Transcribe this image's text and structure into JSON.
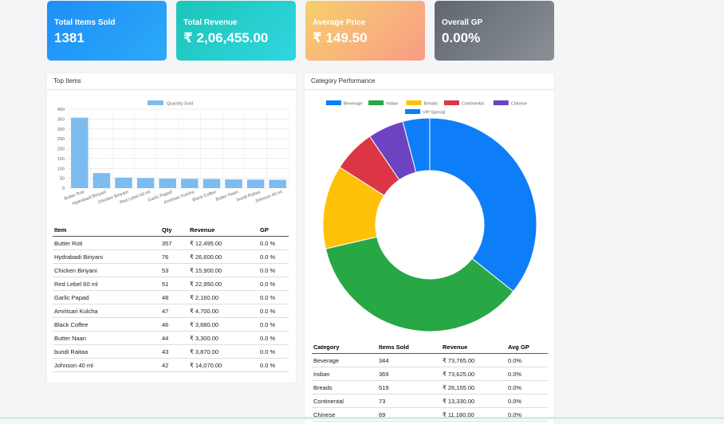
{
  "kpis": [
    {
      "label": "Total Items Sold",
      "value": "1381"
    },
    {
      "label": "Total Revenue",
      "value": "₹ 2,06,455.00"
    },
    {
      "label": "Average Price",
      "value": "₹ 149.50"
    },
    {
      "label": "Overall GP",
      "value": "0.00%"
    }
  ],
  "top_items": {
    "title": "Top Items",
    "headers": {
      "item": "Item",
      "qty": "Qty",
      "revenue": "Revenue",
      "gp": "GP"
    },
    "rows": [
      {
        "item": "Butter Roti",
        "qty": "357",
        "revenue": "₹ 12,495.00",
        "gp": "0.0 %"
      },
      {
        "item": "Hydrabadi Biriyani",
        "qty": "76",
        "revenue": "₹ 26,600.00",
        "gp": "0.0 %"
      },
      {
        "item": "Chicken Biriyani",
        "qty": "53",
        "revenue": "₹ 15,900.00",
        "gp": "0.0 %"
      },
      {
        "item": "Red Lebel 60 ml",
        "qty": "51",
        "revenue": "₹ 22,950.00",
        "gp": "0.0 %"
      },
      {
        "item": "Garlic Papad",
        "qty": "48",
        "revenue": "₹ 2,160.00",
        "gp": "0.0 %"
      },
      {
        "item": "Amritsari Kulcha",
        "qty": "47",
        "revenue": "₹ 4,700.00",
        "gp": "0.0 %"
      },
      {
        "item": "Black Coffee",
        "qty": "46",
        "revenue": "₹ 3,680.00",
        "gp": "0.0 %"
      },
      {
        "item": "Butter Naan",
        "qty": "44",
        "revenue": "₹ 3,300.00",
        "gp": "0.0 %"
      },
      {
        "item": "bundi Raitaa",
        "qty": "43",
        "revenue": "₹ 3,870.00",
        "gp": "0.0 %"
      },
      {
        "item": "Johnson 40 ml",
        "qty": "42",
        "revenue": "₹ 14,070.00",
        "gp": "0.0 %"
      }
    ]
  },
  "category_performance": {
    "title": "Category Performance",
    "headers": {
      "category": "Category",
      "items_sold": "Items Sold",
      "revenue": "Revenue",
      "avg_gp": "Avg GP"
    },
    "rows": [
      {
        "category": "Beverage",
        "items_sold": "344",
        "revenue": "₹ 73,765.00",
        "avg_gp": "0.0%"
      },
      {
        "category": "Indian",
        "items_sold": "369",
        "revenue": "₹ 73,625.00",
        "avg_gp": "0.0%"
      },
      {
        "category": "Breads",
        "items_sold": "519",
        "revenue": "₹ 26,155.00",
        "avg_gp": "0.0%"
      },
      {
        "category": "Continental",
        "items_sold": "73",
        "revenue": "₹ 13,330.00",
        "avg_gp": "0.0%"
      },
      {
        "category": "Chinese",
        "items_sold": "69",
        "revenue": "₹ 11,180.00",
        "avg_gp": "0.0%"
      }
    ]
  },
  "chart_data": [
    {
      "type": "bar",
      "categories": [
        "Butter Roti",
        "Hydrabadi Biriyani",
        "Chicken Biriyani",
        "Red Lebel 60 ml",
        "Garlic Papad",
        "Amritsari Kulcha",
        "Black Coffee",
        "Butter Naan",
        "bundi Raitaa",
        "Johnson 40 ml"
      ],
      "series": [
        {
          "name": "Quantity Sold",
          "values": [
            357,
            76,
            53,
            51,
            48,
            47,
            46,
            44,
            43,
            42
          ],
          "color": "#7cbcf0"
        }
      ],
      "ylim": [
        0,
        400
      ],
      "yticks": [
        0,
        50,
        100,
        150,
        200,
        250,
        300,
        350,
        400
      ],
      "legend": "top",
      "grid": true
    },
    {
      "type": "pie",
      "labels": [
        "Beverage",
        "Indian",
        "Breads",
        "Continental",
        "Chinese",
        "VIP Special"
      ],
      "values": [
        73765,
        73625,
        26155,
        13330,
        11180,
        8400
      ],
      "colors": [
        "#0d7ef8",
        "#28a745",
        "#ffc107",
        "#dc3545",
        "#6f42c1",
        "#0d7ef8"
      ],
      "legend": "top",
      "donut": true
    }
  ]
}
